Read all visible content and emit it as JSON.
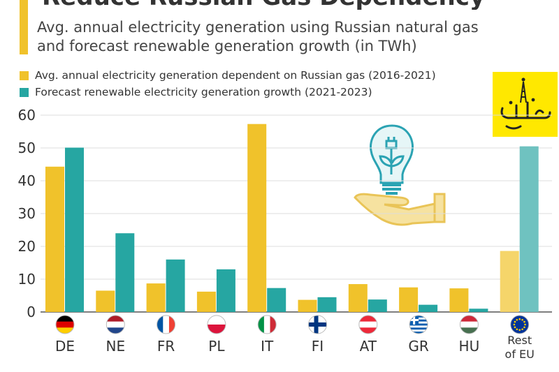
{
  "header": {
    "title": "Reduce Russian Gas Dependency",
    "subtitle_line1": "Avg. annual electricity generation using Russian natural gas",
    "subtitle_line2": "and forecast renewable generation growth (in TWh)"
  },
  "colors": {
    "gas": "#f0c22b",
    "renewable": "#26a6a2",
    "gas_light": "#f5d56a",
    "renewable_light": "#6fc2c0",
    "accent": "#f0c22b",
    "logo_bg": "#ffe800"
  },
  "chart_data": {
    "type": "bar",
    "title": "Avg. annual electricity generation using Russian natural gas and forecast renewable generation growth (in TWh)",
    "categories": [
      "DE",
      "NE",
      "FR",
      "PL",
      "IT",
      "FI",
      "AT",
      "GR",
      "HU",
      "Rest of EU"
    ],
    "series": [
      {
        "name": "Avg. annual electricity generation dependent on Russian gas (2016-2021)",
        "values": [
          44.3,
          6.5,
          8.7,
          6.2,
          57.3,
          3.7,
          8.5,
          7.5,
          7.2,
          18.6
        ]
      },
      {
        "name": "Forecast renewable electricity generation growth (2021-2023)",
        "values": [
          50.1,
          24.0,
          16.0,
          13.0,
          7.3,
          4.5,
          3.8,
          2.2,
          1.0,
          50.5
        ]
      }
    ],
    "ylim": [
      0,
      60
    ],
    "yticks": [
      0,
      10,
      20,
      30,
      40,
      50,
      60
    ],
    "grid": true,
    "legend_position": "top-left",
    "flags": [
      "germany-flag",
      "netherlands-flag",
      "france-flag",
      "poland-flag",
      "italy-flag",
      "finland-flag",
      "austria-flag",
      "greece-flag",
      "hungary-flag",
      "eu-flag"
    ]
  }
}
